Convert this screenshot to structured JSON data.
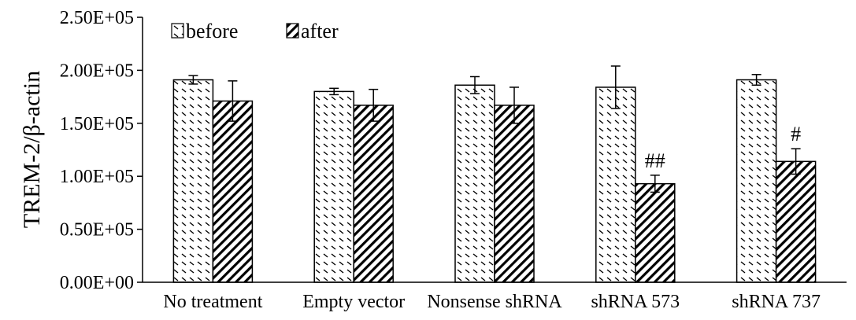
{
  "chart_data": {
    "type": "bar",
    "ylabel": "TREM-2/β-actin",
    "ylim": [
      0,
      250000
    ],
    "y_ticks": [
      "0.00E+00",
      "0.50E+05",
      "1.00E+05",
      "1.50E+05",
      "2.00E+05",
      "2.50E+05"
    ],
    "categories": [
      "No treatment",
      "Empty vector",
      "Nonsense shRNA",
      "shRNA 573",
      "shRNA 737"
    ],
    "series": [
      {
        "name": "before",
        "pattern": "back-dash",
        "values": [
          191000,
          180000,
          186000,
          184000,
          191000
        ],
        "errors": [
          4000,
          3000,
          8000,
          20000,
          5000
        ]
      },
      {
        "name": "after",
        "pattern": "diagonal-hatch",
        "values": [
          171000,
          167000,
          167000,
          93000,
          114000
        ],
        "errors": [
          19000,
          15000,
          17000,
          8000,
          12000
        ]
      }
    ],
    "annotations": [
      {
        "category": "shRNA 573",
        "series": "after",
        "text": "##"
      },
      {
        "category": "shRNA 737",
        "series": "after",
        "text": "#"
      }
    ],
    "legend_position": "top-left",
    "grid": false,
    "colors": {
      "stroke": "#000000",
      "background": "#ffffff"
    }
  }
}
